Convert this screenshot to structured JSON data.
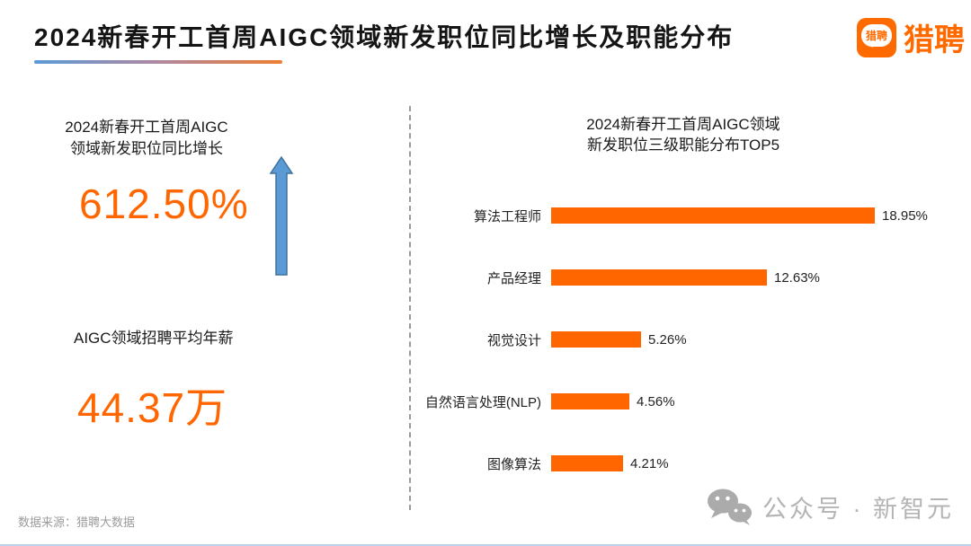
{
  "header": {
    "title": "2024新春开工首周AIGC领域新发职位同比增长及职能分布",
    "logo": {
      "icon_text": "猎聘",
      "brand_text": "猎聘"
    }
  },
  "left_panel": {
    "growth_title_line1": "2024新春开工首周AIGC",
    "growth_title_line2": "领域新发职位同比增长",
    "growth_value": "612.50%",
    "salary_title": "AIGC领域招聘平均年薪",
    "salary_value": "44.37万"
  },
  "chart_data": {
    "type": "bar",
    "orientation": "horizontal",
    "title_line1": "2024新春开工首周AIGC领域",
    "title_line2": "新发职位三级职能分布TOP5",
    "categories": [
      "算法工程师",
      "产品经理",
      "视觉设计",
      "自然语言处理(NLP)",
      "图像算法"
    ],
    "values": [
      18.95,
      12.63,
      5.26,
      4.56,
      4.21
    ],
    "value_labels": [
      "18.95%",
      "12.63%",
      "5.26%",
      "4.56%",
      "4.21%"
    ],
    "unit": "%",
    "xlim": [
      0,
      20
    ],
    "grid": false,
    "legend": "none",
    "bar_color": "#FF6600"
  },
  "footer": {
    "source": "数据来源：猎聘大数据",
    "watermark_text": "公众号 · 新智元"
  },
  "colors": {
    "accent_orange": "#FF6600",
    "logo_orange": "#FF6A00",
    "arrow_blue_fill": "#5B9BD5",
    "arrow_blue_border": "#41719C",
    "underline_start": "#5B9BD5",
    "underline_end": "#ED7D31",
    "source_gray": "#9B9B9B",
    "watermark_gray": "#B4B4B4"
  }
}
